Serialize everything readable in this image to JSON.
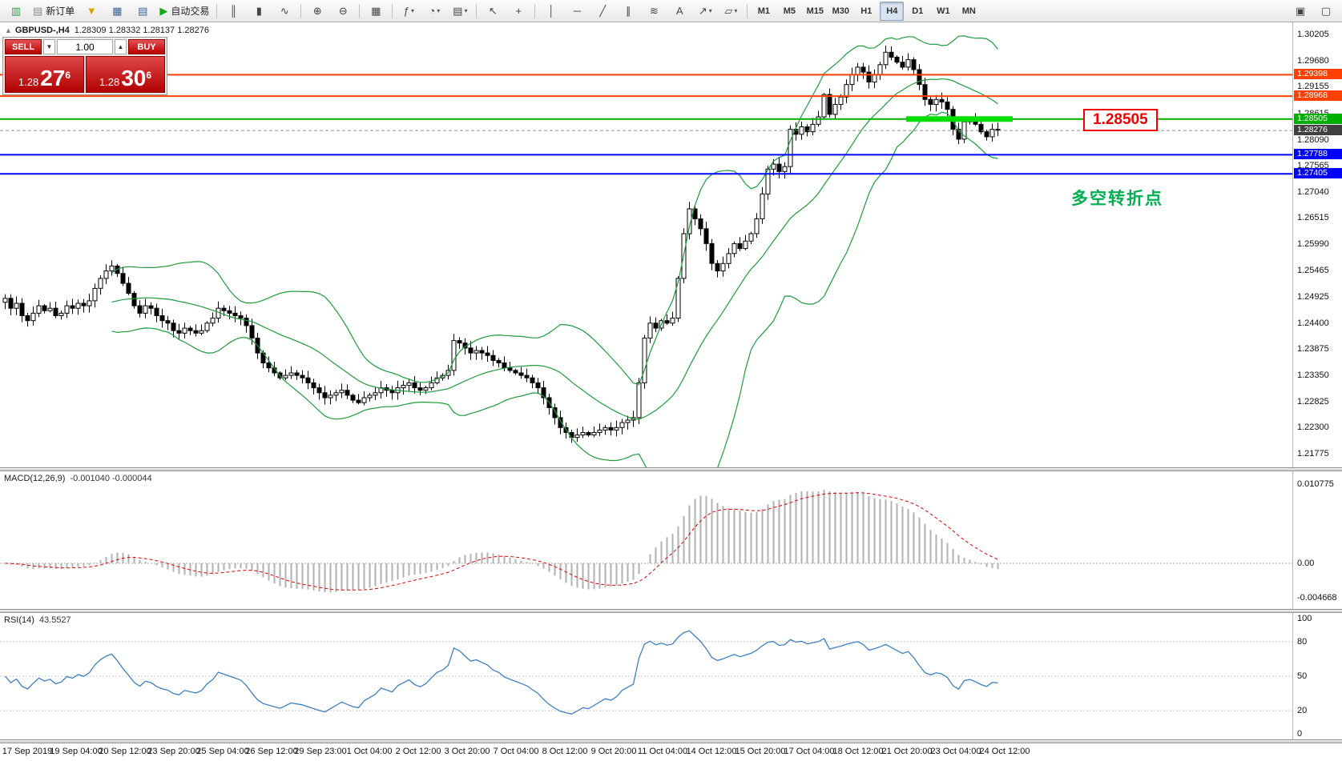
{
  "toolbar": {
    "groups": [
      {
        "name": "file",
        "buttons": [
          {
            "name": "new-chart",
            "glyph": "▥",
            "color": "#2f9e44"
          },
          {
            "name": "new-order",
            "glyph": "▤",
            "color": "#888888",
            "label": "新订单"
          },
          {
            "name": "profiles",
            "glyph": "▼",
            "color": "#d9a400"
          },
          {
            "name": "market-watch",
            "glyph": "▦",
            "color": "#3465a4"
          },
          {
            "name": "data-window",
            "glyph": "▤",
            "color": "#3465a4"
          },
          {
            "name": "auto-trading",
            "glyph": "▶",
            "color": "#11a811",
            "label": "自动交易"
          }
        ]
      },
      {
        "name": "chart-type",
        "buttons": [
          {
            "name": "bar-chart",
            "glyph": "║"
          },
          {
            "name": "candlestick-chart",
            "glyph": "▮"
          },
          {
            "name": "line-chart",
            "glyph": "∿"
          }
        ]
      },
      {
        "name": "zoom",
        "buttons": [
          {
            "name": "zoom-in",
            "glyph": "⊕"
          },
          {
            "name": "zoom-out",
            "glyph": "⊖"
          }
        ]
      },
      {
        "name": "windows",
        "buttons": [
          {
            "name": "tile-windows",
            "glyph": "▦"
          }
        ]
      },
      {
        "name": "chart-tools",
        "buttons": [
          {
            "name": "indicators",
            "glyph": "ƒ",
            "dropdown": true
          },
          {
            "name": "periods",
            "glyph": "◔",
            "dropdown": true
          },
          {
            "name": "templates",
            "glyph": "▤",
            "dropdown": true
          }
        ]
      },
      {
        "name": "cursor",
        "buttons": [
          {
            "name": "cursor",
            "glyph": "↖"
          },
          {
            "name": "crosshair",
            "glyph": "+"
          }
        ]
      },
      {
        "name": "draw",
        "buttons": [
          {
            "name": "vertical-line",
            "glyph": "│"
          },
          {
            "name": "horizontal-line",
            "glyph": "─"
          },
          {
            "name": "trendline",
            "glyph": "╱"
          },
          {
            "name": "equidistant-channel",
            "glyph": "∥"
          },
          {
            "name": "fibonacci",
            "glyph": "≋"
          },
          {
            "name": "text-label",
            "glyph": "A"
          },
          {
            "name": "arrows",
            "glyph": "↗",
            "dropdown": true
          },
          {
            "name": "shapes",
            "glyph": "▱",
            "dropdown": true
          }
        ]
      },
      {
        "name": "timeframes",
        "buttons": [
          {
            "name": "tf-m1",
            "label": "M1"
          },
          {
            "name": "tf-m5",
            "label": "M5"
          },
          {
            "name": "tf-m15",
            "label": "M15"
          },
          {
            "name": "tf-m30",
            "label": "M30"
          },
          {
            "name": "tf-h1",
            "label": "H1"
          },
          {
            "name": "tf-h4",
            "label": "H4",
            "active": true
          },
          {
            "name": "tf-d1",
            "label": "D1"
          },
          {
            "name": "tf-w1",
            "label": "W1"
          },
          {
            "name": "tf-mn",
            "label": "MN"
          }
        ]
      },
      {
        "name": "right",
        "align": "right",
        "buttons": [
          {
            "name": "chart-list",
            "glyph": "▣"
          },
          {
            "name": "docking",
            "glyph": "▢"
          }
        ]
      }
    ]
  },
  "chart_header": {
    "toggle_glyph": "▲",
    "symbol_period": "GBPUSD-,H4",
    "ohlc": "1.28309 1.28332 1.28137 1.28276"
  },
  "trade_panel": {
    "sell_label": "SELL",
    "buy_label": "BUY",
    "volume": "1.00",
    "volume_down_glyph": "▼",
    "volume_up_glyph": "▲",
    "sell_price": {
      "head": "1.28",
      "pips": "27",
      "frac": "6"
    },
    "buy_price": {
      "head": "1.28",
      "pips": "30",
      "frac": "6"
    }
  },
  "annotations": {
    "price_callout": "1.28505",
    "turning_point": "多空转折点",
    "callout_color": "#f00000",
    "turning_point_color": "#00b050"
  },
  "indicators": {
    "macd": {
      "title": "MACD(12,26,9)",
      "values": "-0.001040 -0.000044"
    },
    "rsi": {
      "title": "RSI(14)",
      "value": "43.5527"
    }
  },
  "chart_data": {
    "type": "candlestick",
    "symbol": "GBPUSD-",
    "timeframe": "H4",
    "price_panel": {
      "price_max": 1.3045,
      "price_min": 1.215,
      "y_ticks": [
        "1.30205",
        "1.29680",
        "1.29155",
        "1.28615",
        "1.28090",
        "1.27565",
        "1.27040",
        "1.26515",
        "1.25990",
        "1.25465",
        "1.24925",
        "1.24400",
        "1.23875",
        "1.23350",
        "1.22825",
        "1.22300",
        "1.21775"
      ],
      "bollinger_period": 20,
      "bollinger_dev": 2,
      "band_color": "#1e9c3e",
      "closes": [
        1.249,
        1.247,
        1.248,
        1.2455,
        1.2445,
        1.246,
        1.2475,
        1.2465,
        1.247,
        1.2455,
        1.246,
        1.2475,
        1.247,
        1.248,
        1.2475,
        1.2485,
        1.251,
        1.253,
        1.2545,
        1.2555,
        1.254,
        1.252,
        1.25,
        1.2475,
        1.246,
        1.2475,
        1.247,
        1.2455,
        1.2445,
        1.244,
        1.2425,
        1.242,
        1.243,
        1.2425,
        1.242,
        1.2425,
        1.244,
        1.245,
        1.247,
        1.2465,
        1.246,
        1.2455,
        1.245,
        1.2435,
        1.241,
        1.238,
        1.236,
        1.235,
        1.234,
        1.233,
        1.2335,
        1.234,
        1.2335,
        1.233,
        1.232,
        1.231,
        1.23,
        1.229,
        1.2295,
        1.23,
        1.2305,
        1.2295,
        1.2285,
        1.228,
        1.229,
        1.2295,
        1.23,
        1.231,
        1.2305,
        1.23,
        1.231,
        1.2315,
        1.232,
        1.231,
        1.2305,
        1.231,
        1.232,
        1.233,
        1.2335,
        1.2345,
        1.2405,
        1.24,
        1.239,
        1.238,
        1.2385,
        1.238,
        1.2375,
        1.2365,
        1.236,
        1.235,
        1.2345,
        1.234,
        1.2335,
        1.233,
        1.232,
        1.231,
        1.229,
        1.227,
        1.225,
        1.223,
        1.222,
        1.221,
        1.2215,
        1.222,
        1.2215,
        1.222,
        1.2225,
        1.223,
        1.2225,
        1.223,
        1.224,
        1.2245,
        1.225,
        1.232,
        1.241,
        1.244,
        1.243,
        1.2445,
        1.244,
        1.245,
        1.253,
        1.262,
        1.267,
        1.265,
        1.263,
        1.26,
        1.256,
        1.2545,
        1.256,
        1.258,
        1.26,
        1.259,
        1.2605,
        1.262,
        1.265,
        1.27,
        1.275,
        1.276,
        1.2745,
        1.2755,
        1.283,
        1.282,
        1.2835,
        1.2825,
        1.284,
        1.2855,
        1.29,
        1.286,
        1.288,
        1.2895,
        1.292,
        1.294,
        1.2955,
        1.2945,
        1.2925,
        1.294,
        1.296,
        1.2985,
        1.2975,
        1.2965,
        1.2955,
        1.297,
        1.295,
        1.292,
        1.289,
        1.288,
        1.289,
        1.2885,
        1.287,
        1.283,
        1.281,
        1.2845,
        1.285,
        1.284,
        1.2825,
        1.2815,
        1.283,
        1.2828
      ]
    },
    "hlines": [
      {
        "value": 1.29398,
        "label": "1.29398",
        "color": "#ff4000",
        "width": 2
      },
      {
        "value": 1.28968,
        "label": "1.28968",
        "color": "#ff4000",
        "width": 2
      },
      {
        "value": 1.28505,
        "label": "1.28505",
        "color": "#00b000",
        "width": 2
      },
      {
        "value": 1.27788,
        "label": "1.27788",
        "color": "#0000ff",
        "width": 2
      },
      {
        "value": 1.27405,
        "label": "1.27405",
        "color": "#0000ff",
        "width": 2
      }
    ],
    "current_price": 1.28276,
    "current_price_label": "1.28276",
    "current_price_tag_color": "#404040",
    "highlight": {
      "price": 1.28505,
      "start_candle": 161,
      "end_candle": 180,
      "color": "#00e000",
      "thickness": 7
    },
    "macd_panel": {
      "y_ticks": [
        "0.010775",
        "0.00",
        "-0.004668"
      ],
      "tick_values": [
        0.010775,
        0,
        -0.004668
      ],
      "range": [
        -0.0062,
        0.0125
      ],
      "histogram_color": "#b2b2b2",
      "signal_color": "#e00000"
    },
    "rsi_panel": {
      "period": 14,
      "y_ticks": [
        "100",
        "80",
        "50",
        "20",
        "0"
      ],
      "tick_values": [
        100,
        80,
        50,
        20,
        0
      ],
      "levels": [
        80,
        50,
        20
      ],
      "range": [
        -5,
        105
      ],
      "line_color": "#3e7fc1"
    },
    "x_labels": [
      "17 Sep 2019",
      "19 Sep 04:00",
      "20 Sep 12:00",
      "23 Sep 20:00",
      "25 Sep 04:00",
      "26 Sep 12:00",
      "29 Sep 23:00",
      "1 Oct 04:00",
      "2 Oct 12:00",
      "3 Oct 20:00",
      "7 Oct 04:00",
      "8 Oct 12:00",
      "9 Oct 20:00",
      "11 Oct 04:00",
      "14 Oct 12:00",
      "15 Oct 20:00",
      "17 Oct 04:00",
      "18 Oct 12:00",
      "21 Oct 20:00",
      "23 Oct 04:00",
      "24 Oct 12:00"
    ]
  }
}
